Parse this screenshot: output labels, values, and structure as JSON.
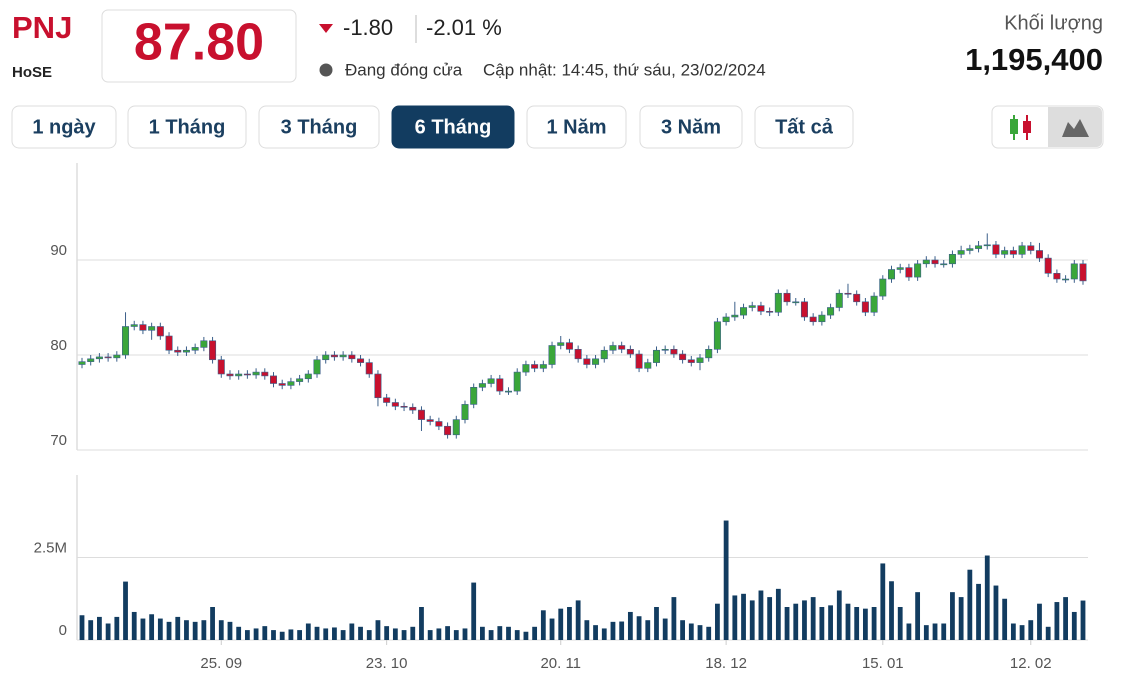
{
  "header": {
    "symbol": "PNJ",
    "exchange": "HoSE",
    "price": "87.80",
    "change": "-1.80",
    "change_pct": "-2.01 %",
    "status": "Đang đóng cửa",
    "updated": "Cập nhật: 14:45, thứ sáu, 23/02/2024",
    "volume_label": "Khối lượng",
    "volume": "1,195,400"
  },
  "range_buttons": {
    "labels": [
      "1 ngày",
      "1 Tháng",
      "3 Tháng",
      "6 Tháng",
      "1 Năm",
      "3 Năm",
      "Tất cả"
    ],
    "active": 3
  },
  "chart_data": [
    {
      "type": "candlestick",
      "up_color": "#3aa63a",
      "down_color": "#c8102e",
      "open": [
        79.0,
        79.3,
        79.6,
        79.8,
        79.7,
        80.0,
        83.0,
        83.2,
        82.6,
        83.0,
        82.0,
        80.5,
        80.3,
        80.5,
        80.8,
        81.5,
        79.5,
        78.0,
        77.8,
        78.0,
        77.9,
        78.2,
        77.8,
        77.0,
        76.8,
        77.2,
        77.5,
        78.0,
        79.5,
        80.0,
        79.8,
        80.0,
        79.6,
        79.2,
        78.0,
        75.5,
        75.0,
        74.6,
        74.5,
        74.2,
        73.2,
        73.0,
        72.5,
        71.6,
        73.2,
        74.8,
        76.6,
        77.0,
        77.5,
        76.2,
        76.2,
        78.2,
        79.0,
        78.6,
        79.0,
        81.0,
        81.3,
        80.6,
        79.6,
        79.0,
        79.6,
        80.5,
        81.0,
        80.6,
        80.1,
        78.6,
        79.2,
        80.5,
        80.6,
        80.1,
        79.5,
        79.2,
        79.7,
        80.6,
        83.5,
        84.0,
        84.2,
        85.0,
        85.2,
        84.6,
        84.5,
        86.5,
        85.6,
        85.6,
        84.0,
        83.5,
        84.2,
        85.0,
        86.5,
        86.4,
        85.6,
        84.5,
        86.2,
        88.0,
        89.0,
        89.2,
        88.2,
        89.6,
        90.0,
        89.6,
        89.6,
        90.6,
        91.0,
        91.2,
        91.5,
        91.6,
        90.6,
        91.0,
        90.6,
        91.5,
        91.0,
        90.2,
        88.6,
        88.0,
        88.0,
        89.6
      ],
      "high": [
        79.7,
        80.0,
        80.2,
        80.2,
        80.4,
        84.5,
        83.6,
        83.6,
        83.4,
        83.4,
        82.4,
        80.9,
        80.9,
        81.2,
        81.9,
        81.9,
        79.9,
        78.4,
        78.4,
        78.4,
        78.6,
        78.6,
        78.2,
        77.4,
        77.6,
        77.9,
        78.4,
        79.9,
        80.4,
        80.4,
        80.4,
        80.4,
        80.0,
        79.6,
        78.4,
        75.9,
        75.4,
        75.0,
        74.9,
        74.6,
        73.6,
        73.4,
        72.9,
        73.6,
        75.2,
        77.0,
        77.4,
        77.9,
        77.9,
        76.6,
        78.6,
        79.4,
        79.4,
        79.4,
        81.4,
        82.0,
        81.7,
        81.0,
        80.0,
        80.0,
        80.9,
        81.4,
        81.4,
        81.0,
        80.5,
        79.6,
        80.9,
        81.0,
        81.0,
        80.5,
        79.9,
        80.1,
        81.0,
        83.9,
        84.4,
        85.6,
        85.4,
        85.6,
        85.6,
        85.0,
        86.9,
        86.9,
        86.0,
        86.0,
        84.4,
        84.6,
        85.4,
        86.9,
        87.5,
        86.8,
        86.0,
        86.6,
        88.4,
        89.4,
        89.6,
        89.6,
        90.0,
        90.4,
        90.4,
        90.0,
        91.0,
        91.5,
        91.6,
        92.0,
        92.8,
        92.0,
        91.4,
        91.4,
        91.9,
        91.9,
        91.8,
        90.6,
        89.0,
        88.4,
        90.0,
        90.0
      ],
      "low": [
        78.6,
        78.9,
        79.2,
        79.3,
        79.3,
        79.6,
        82.6,
        82.2,
        81.6,
        81.6,
        80.1,
        79.9,
        79.9,
        80.1,
        80.4,
        79.1,
        77.6,
        77.4,
        77.4,
        77.5,
        77.5,
        77.4,
        76.6,
        76.4,
        76.4,
        76.8,
        77.1,
        77.6,
        79.1,
        79.4,
        79.4,
        79.2,
        78.8,
        77.6,
        74.6,
        74.6,
        74.2,
        74.1,
        73.8,
        72.0,
        72.6,
        72.1,
        71.2,
        71.2,
        72.8,
        74.4,
        76.2,
        76.6,
        75.8,
        75.8,
        75.8,
        77.8,
        78.2,
        78.2,
        78.6,
        80.6,
        80.2,
        79.2,
        78.6,
        78.6,
        79.2,
        80.1,
        80.2,
        79.7,
        78.2,
        78.2,
        78.8,
        80.1,
        79.7,
        79.1,
        78.8,
        78.4,
        79.3,
        80.2,
        83.1,
        83.6,
        83.8,
        84.6,
        84.2,
        84.1,
        84.1,
        85.2,
        85.2,
        83.6,
        83.1,
        83.1,
        83.8,
        84.6,
        86.0,
        85.2,
        84.1,
        84.1,
        85.8,
        87.6,
        88.6,
        87.8,
        87.8,
        89.2,
        89.2,
        89.2,
        89.2,
        90.2,
        90.6,
        90.8,
        91.1,
        90.2,
        90.2,
        90.2,
        90.2,
        90.6,
        89.8,
        88.2,
        87.6,
        87.6,
        87.6,
        87.4
      ],
      "close": [
        79.3,
        79.6,
        79.8,
        79.7,
        80.0,
        83.0,
        83.2,
        82.6,
        83.0,
        82.0,
        80.5,
        80.3,
        80.5,
        80.8,
        81.5,
        79.5,
        78.0,
        77.8,
        78.0,
        77.9,
        78.2,
        77.8,
        77.0,
        76.8,
        77.2,
        77.5,
        78.0,
        79.5,
        80.0,
        79.8,
        80.0,
        79.6,
        79.2,
        78.0,
        75.5,
        75.0,
        74.6,
        74.5,
        74.2,
        73.2,
        73.0,
        72.5,
        71.6,
        73.2,
        74.8,
        76.6,
        77.0,
        77.5,
        76.2,
        76.2,
        78.2,
        79.0,
        78.6,
        79.0,
        81.0,
        81.3,
        80.6,
        79.6,
        79.0,
        79.6,
        80.5,
        81.0,
        80.6,
        80.1,
        78.6,
        79.2,
        80.5,
        80.6,
        80.1,
        79.5,
        79.2,
        79.7,
        80.6,
        83.5,
        84.0,
        84.2,
        85.0,
        85.2,
        84.6,
        84.5,
        86.5,
        85.6,
        85.6,
        84.0,
        83.5,
        84.2,
        85.0,
        86.5,
        86.4,
        85.6,
        84.5,
        86.2,
        88.0,
        89.0,
        89.2,
        88.2,
        89.6,
        90.0,
        89.6,
        89.6,
        90.6,
        91.0,
        91.2,
        91.5,
        91.6,
        90.6,
        91.0,
        90.6,
        91.5,
        91.0,
        90.2,
        88.6,
        88.0,
        88.0,
        89.6,
        87.8
      ],
      "ylim": [
        70,
        100
      ],
      "yticks": [
        70,
        80,
        90
      ],
      "grid": true
    },
    {
      "type": "bar",
      "color": "#123c60",
      "categories": [
        null,
        null,
        null,
        null,
        null,
        null,
        null,
        null,
        null,
        null,
        null,
        null,
        null,
        null,
        null,
        null,
        "25. 09",
        null,
        null,
        null,
        null,
        null,
        null,
        null,
        null,
        null,
        null,
        null,
        null,
        null,
        null,
        null,
        null,
        null,
        null,
        "23. 10",
        null,
        null,
        null,
        null,
        null,
        null,
        null,
        null,
        null,
        null,
        null,
        null,
        null,
        null,
        null,
        null,
        null,
        null,
        null,
        "20. 11",
        null,
        null,
        null,
        null,
        null,
        null,
        null,
        null,
        null,
        null,
        null,
        null,
        null,
        null,
        null,
        null,
        null,
        null,
        "18. 12",
        null,
        null,
        null,
        null,
        null,
        null,
        null,
        null,
        null,
        null,
        null,
        null,
        null,
        null,
        null,
        null,
        null,
        "15. 01",
        null,
        null,
        null,
        null,
        null,
        null,
        null,
        null,
        null,
        null,
        null,
        null,
        null,
        null,
        null,
        null,
        "12. 02",
        null,
        null,
        null,
        null,
        null,
        null
      ],
      "values": [
        750000,
        600000,
        700000,
        500000,
        700000,
        1770000,
        850000,
        650000,
        780000,
        650000,
        550000,
        700000,
        600000,
        550000,
        600000,
        1000000,
        600000,
        550000,
        400000,
        300000,
        350000,
        420000,
        300000,
        250000,
        320000,
        300000,
        500000,
        400000,
        350000,
        380000,
        300000,
        500000,
        400000,
        300000,
        600000,
        420000,
        350000,
        300000,
        400000,
        1000000,
        300000,
        350000,
        420000,
        300000,
        350000,
        1740000,
        400000,
        300000,
        420000,
        400000,
        300000,
        250000,
        400000,
        900000,
        650000,
        950000,
        1000000,
        1200000,
        600000,
        450000,
        350000,
        550000,
        560000,
        850000,
        720000,
        600000,
        1000000,
        650000,
        1300000,
        600000,
        500000,
        450000,
        400000,
        1100000,
        3620000,
        1350000,
        1400000,
        1200000,
        1500000,
        1300000,
        1550000,
        1000000,
        1100000,
        1200000,
        1300000,
        1000000,
        1050000,
        1500000,
        1100000,
        1000000,
        950000,
        1000000,
        2320000,
        1780000,
        1000000,
        500000,
        1450000,
        450000,
        500000,
        500000,
        1450000,
        1300000,
        2130000,
        1700000,
        2560000,
        1650000,
        1250000,
        500000,
        450000,
        600000,
        1100000,
        400000,
        1150000,
        1300000,
        850000,
        1195400
      ],
      "ylim": [
        0,
        5000000
      ],
      "yticks": [
        0,
        {
          "value": 2500000,
          "label": "2.5M"
        }
      ],
      "grid": true
    }
  ]
}
